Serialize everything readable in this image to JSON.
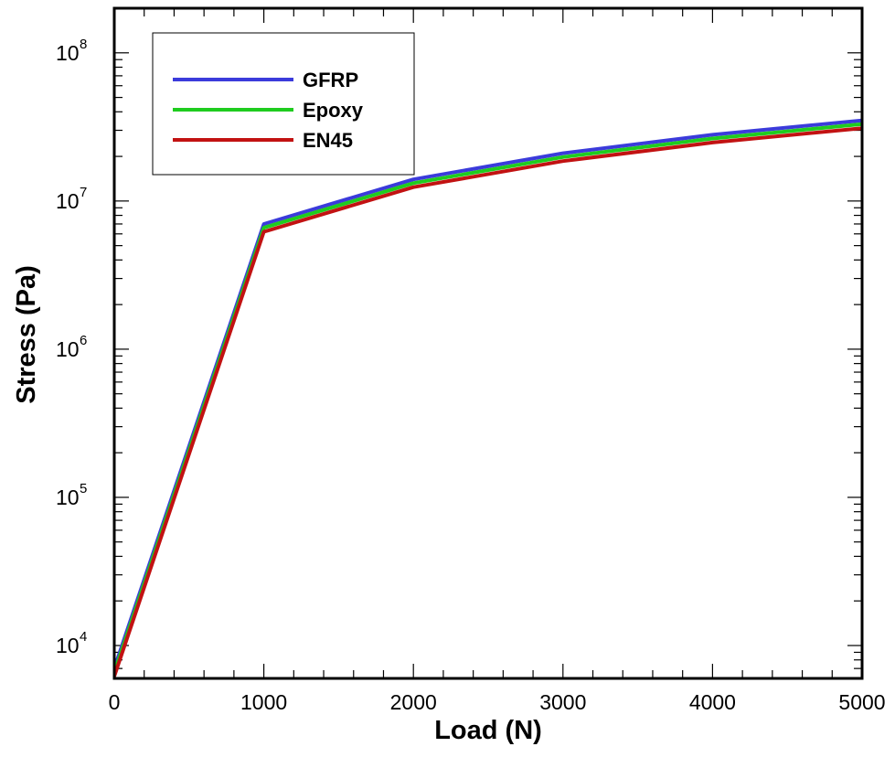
{
  "colors": {
    "GFRP": "#3b3bdb",
    "Epoxy": "#1fcc1f",
    "EN45": "#c21212"
  },
  "chart_data": {
    "type": "line",
    "title": "",
    "xlabel": "Load (N)",
    "ylabel": "Stress (Pa)",
    "xlim": [
      0,
      5000
    ],
    "ylim": [
      6000,
      200000000
    ],
    "yscale": "log",
    "grid": false,
    "legend_position": "top-left",
    "x_ticks": [
      "0",
      "1000",
      "2000",
      "3000",
      "4000",
      "5000"
    ],
    "y_ticks": [
      {
        "value": 10000,
        "base": "10",
        "exp": "4"
      },
      {
        "value": 100000,
        "base": "10",
        "exp": "5"
      },
      {
        "value": 1000000,
        "base": "10",
        "exp": "6"
      },
      {
        "value": 10000000,
        "base": "10",
        "exp": "7"
      },
      {
        "value": 100000000,
        "base": "10",
        "exp": "8"
      }
    ],
    "x": [
      0,
      1000,
      2000,
      3000,
      4000,
      5000
    ],
    "series": [
      {
        "name": "GFRP",
        "values": [
          7000,
          7000000,
          14000000,
          21000000,
          28000000,
          35000000
        ]
      },
      {
        "name": "Epoxy",
        "values": [
          6600,
          6600000,
          13200000,
          19800000,
          26400000,
          33000000
        ]
      },
      {
        "name": "EN45",
        "values": [
          6200,
          6200000,
          12400000,
          18600000,
          24800000,
          31000000
        ]
      }
    ]
  }
}
